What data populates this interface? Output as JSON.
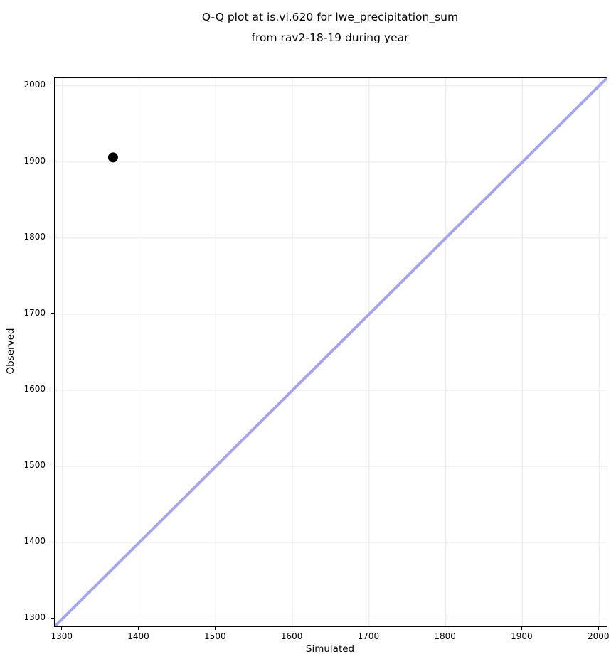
{
  "page": {
    "background": "#ffffff"
  },
  "chart_data": {
    "type": "scatter",
    "title_lines": [
      "Q-Q plot at is.vi.620 for lwe_precipitation_sum",
      "from rav2-18-19 during year"
    ],
    "xlabel": "Simulated",
    "ylabel": "Observed",
    "xlim": [
      1290,
      2010
    ],
    "ylim": [
      1290,
      2010
    ],
    "xticks": [
      1300,
      1400,
      1500,
      1600,
      1700,
      1800,
      1900,
      2000
    ],
    "yticks": [
      1300,
      1400,
      1500,
      1600,
      1700,
      1800,
      1900,
      2000
    ],
    "grid": true,
    "legend": null,
    "points": [
      {
        "x": 1366,
        "y": 1906
      }
    ],
    "identity_line": {
      "from": [
        1290,
        1290
      ],
      "to": [
        2010,
        2010
      ]
    },
    "style": {
      "point_radius": 7,
      "line_width": 4,
      "colors": {
        "point": "#000000",
        "identity_line": "#a5a5ef",
        "grid": "#ebebeb",
        "spine": "#000000",
        "text": "#000000"
      }
    }
  }
}
